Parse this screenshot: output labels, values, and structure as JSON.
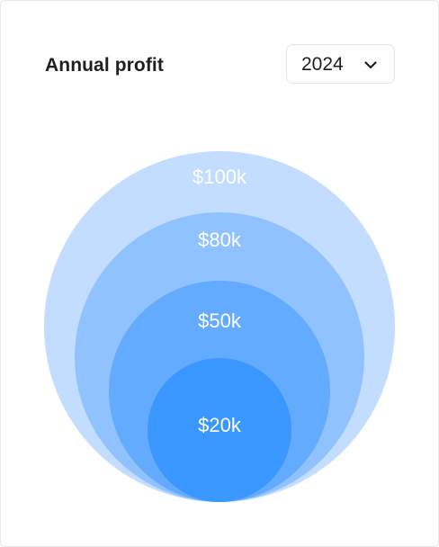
{
  "card": {
    "title": "Annual profit"
  },
  "year_select": {
    "selected": "2024",
    "icon": "chevron-down-icon"
  },
  "colors": {
    "ring_1": "#c2ddff",
    "ring_2": "#8fc2ff",
    "ring_3": "#62abff",
    "ring_4": "#3a97ff",
    "label": "#ffffff"
  },
  "chart_data": {
    "type": "bubble",
    "title": "",
    "series": [
      {
        "label": "$100k",
        "value": 100
      },
      {
        "label": "$80k",
        "value": 80
      },
      {
        "label": "$50k",
        "value": 50
      },
      {
        "label": "$20k",
        "value": 20
      }
    ]
  }
}
